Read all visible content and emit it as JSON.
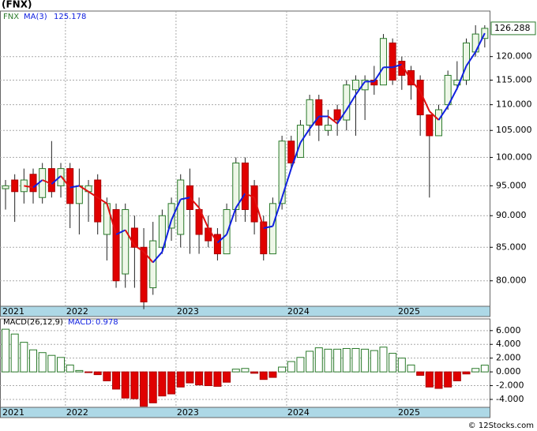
{
  "title": "(FNX)",
  "footer": "© 12Stocks.com",
  "chart_data": [
    {
      "type": "candlestick",
      "symbol": "FNX",
      "log": true,
      "grid": true,
      "categories": [
        "2021",
        null,
        null,
        null,
        null,
        null,
        null,
        "2022",
        null,
        null,
        null,
        null,
        null,
        null,
        null,
        null,
        null,
        null,
        null,
        "2023",
        null,
        null,
        null,
        null,
        null,
        null,
        null,
        null,
        null,
        null,
        null,
        "2024",
        null,
        null,
        null,
        null,
        null,
        null,
        null,
        null,
        null,
        null,
        null,
        "2025",
        null,
        null,
        null,
        null,
        null,
        null,
        null,
        null,
        null
      ],
      "open": [
        94.5,
        96,
        94,
        97,
        93,
        98,
        95,
        98,
        92,
        94,
        96,
        87,
        91,
        81,
        88,
        85,
        79,
        85,
        88,
        87,
        95,
        91,
        88,
        87,
        84,
        91,
        99,
        95,
        89,
        84,
        92,
        103,
        100,
        106,
        111,
        105,
        109,
        107,
        113,
        113,
        115,
        114,
        123,
        119,
        117,
        115,
        108,
        104,
        110,
        114,
        115,
        121,
        124
      ],
      "high": [
        96,
        97,
        98,
        98,
        99,
        103,
        99,
        99,
        98,
        96,
        97,
        93,
        92,
        92,
        90,
        88,
        89,
        91,
        93,
        97,
        98,
        93,
        90,
        88,
        92,
        100,
        100,
        96,
        90,
        93,
        104,
        104,
        107,
        112,
        112,
        109,
        110,
        115,
        116,
        116,
        118,
        125,
        124,
        120,
        118,
        116,
        108,
        110,
        117,
        119,
        124,
        127,
        127
      ],
      "low": [
        91,
        89,
        92,
        92,
        92,
        93,
        93,
        88,
        87,
        89,
        87,
        83,
        79,
        79,
        79,
        76,
        78,
        84,
        86,
        85,
        84,
        84,
        85,
        83,
        84,
        89,
        89,
        87,
        83,
        84,
        91,
        98,
        100,
        104,
        103,
        104,
        104,
        105,
        104,
        107,
        112,
        114,
        114,
        113,
        111,
        104,
        93,
        104,
        109,
        113,
        114,
        120,
        122
      ],
      "close": [
        95,
        94,
        96,
        94,
        98,
        94,
        98,
        92,
        95,
        95,
        89,
        92,
        80,
        91,
        85,
        77,
        86,
        90,
        92,
        96,
        91,
        87,
        86,
        84,
        91,
        99,
        91,
        89,
        84,
        92,
        103,
        99,
        106,
        111,
        106,
        106,
        107,
        114,
        115,
        115,
        114,
        124,
        115,
        116,
        114,
        108,
        104,
        109,
        116,
        115,
        123,
        125,
        126.288
      ],
      "ma": {
        "name": "MA(3)",
        "values": [
          null,
          null,
          95.0,
          94.7,
          96.0,
          95.3,
          96.7,
          94.7,
          95.0,
          94.0,
          93.0,
          92.0,
          87.0,
          87.7,
          85.3,
          84.3,
          82.7,
          84.3,
          89.3,
          92.7,
          93.0,
          91.3,
          88.0,
          85.7,
          87.0,
          91.3,
          93.7,
          93.0,
          88.0,
          88.3,
          93.0,
          98.0,
          102.7,
          105.3,
          107.7,
          107.7,
          106.3,
          109.0,
          112.0,
          114.7,
          114.7,
          117.7,
          117.7,
          118.3,
          115.0,
          112.7,
          108.7,
          107.0,
          109.7,
          113.3,
          118.0,
          121.0,
          125.178
        ]
      },
      "ylim": [
        76.4,
        130.3
      ],
      "yticks": [
        {
          "value": 80,
          "label": "80.000"
        },
        {
          "value": 85,
          "label": "85.000"
        },
        {
          "value": 90,
          "label": "90.000"
        },
        {
          "value": 95,
          "label": "95.000"
        },
        {
          "value": 100,
          "label": "100.000"
        },
        {
          "value": 105,
          "label": "105.000"
        },
        {
          "value": 110,
          "label": "110.000"
        },
        {
          "value": 115,
          "label": "115.000"
        },
        {
          "value": 120,
          "label": "120.000"
        }
      ],
      "up_color": "#2a7a2a",
      "down_color": "#e00000",
      "ma_up_color": "#1020e0",
      "ma_down_color": "#e01010"
    },
    {
      "type": "bar",
      "name": "MACD(26,12,9)",
      "value_name": "MACD:",
      "grid": true,
      "values": [
        6.2,
        5.5,
        4.3,
        3.2,
        2.8,
        2.4,
        2.1,
        1.0,
        0.2,
        -0.1,
        -0.4,
        -1.3,
        -2.5,
        -3.8,
        -3.9,
        -5.0,
        -4.5,
        -3.5,
        -3.2,
        -2.2,
        -1.6,
        -1.9,
        -2.0,
        -2.1,
        -1.5,
        0.4,
        0.5,
        -0.2,
        -1.1,
        -0.8,
        0.7,
        1.5,
        2.1,
        3.0,
        3.5,
        3.3,
        3.3,
        3.4,
        3.4,
        3.3,
        3.1,
        3.6,
        2.7,
        2.0,
        1.0,
        -0.5,
        -2.2,
        -2.4,
        -2.2,
        -1.3,
        -0.3,
        0.5,
        0.978
      ],
      "ylim": [
        -5.15,
        7.7
      ],
      "yticks": [
        {
          "value": -4,
          "label": "-4.000"
        },
        {
          "value": -2,
          "label": "-2.000"
        },
        {
          "value": 0,
          "label": "0.000"
        },
        {
          "value": 2,
          "label": "2.000"
        },
        {
          "value": 4,
          "label": "4.000"
        },
        {
          "value": 6,
          "label": "6.000"
        }
      ],
      "up_color": "#2a7a2a",
      "down_color": "#e00000"
    }
  ]
}
